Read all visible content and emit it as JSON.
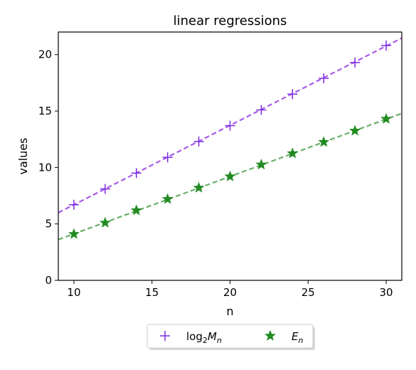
{
  "chart_data": {
    "type": "scatter",
    "title": "linear regressions",
    "xlabel": "n",
    "ylabel": "values",
    "xlim": [
      9,
      31
    ],
    "ylim": [
      0,
      22
    ],
    "x_ticks": [
      10,
      15,
      20,
      25,
      30
    ],
    "y_ticks": [
      0,
      5,
      10,
      15,
      20
    ],
    "grid": false,
    "legend_placement": "bottom-center-outside",
    "series": [
      {
        "name": "log2Mn",
        "name_main": "log",
        "name_sub1": "2",
        "name_mid": "M",
        "name_sub2": "n",
        "marker": "plus",
        "color": "#7b2be2",
        "line_color": "#a85ce8",
        "x": [
          10,
          12,
          14,
          16,
          18,
          20,
          22,
          24,
          26,
          28,
          30
        ],
        "values": [
          6.7,
          8.1,
          9.5,
          10.9,
          12.3,
          13.7,
          15.1,
          16.5,
          17.9,
          19.3,
          20.8
        ],
        "fit": {
          "slope": 0.703,
          "intercept": -0.33
        }
      },
      {
        "name": "En",
        "name_main": "E",
        "name_sub": "n",
        "marker": "star",
        "color": "#228b22",
        "line_color": "#6aaf6a",
        "x": [
          10,
          12,
          14,
          16,
          18,
          20,
          22,
          24,
          26,
          28,
          30
        ],
        "values": [
          4.1,
          5.1,
          6.2,
          7.2,
          8.2,
          9.2,
          10.25,
          11.25,
          12.25,
          13.25,
          14.3
        ],
        "fit": {
          "slope": 0.508,
          "intercept": -0.96
        }
      }
    ]
  }
}
